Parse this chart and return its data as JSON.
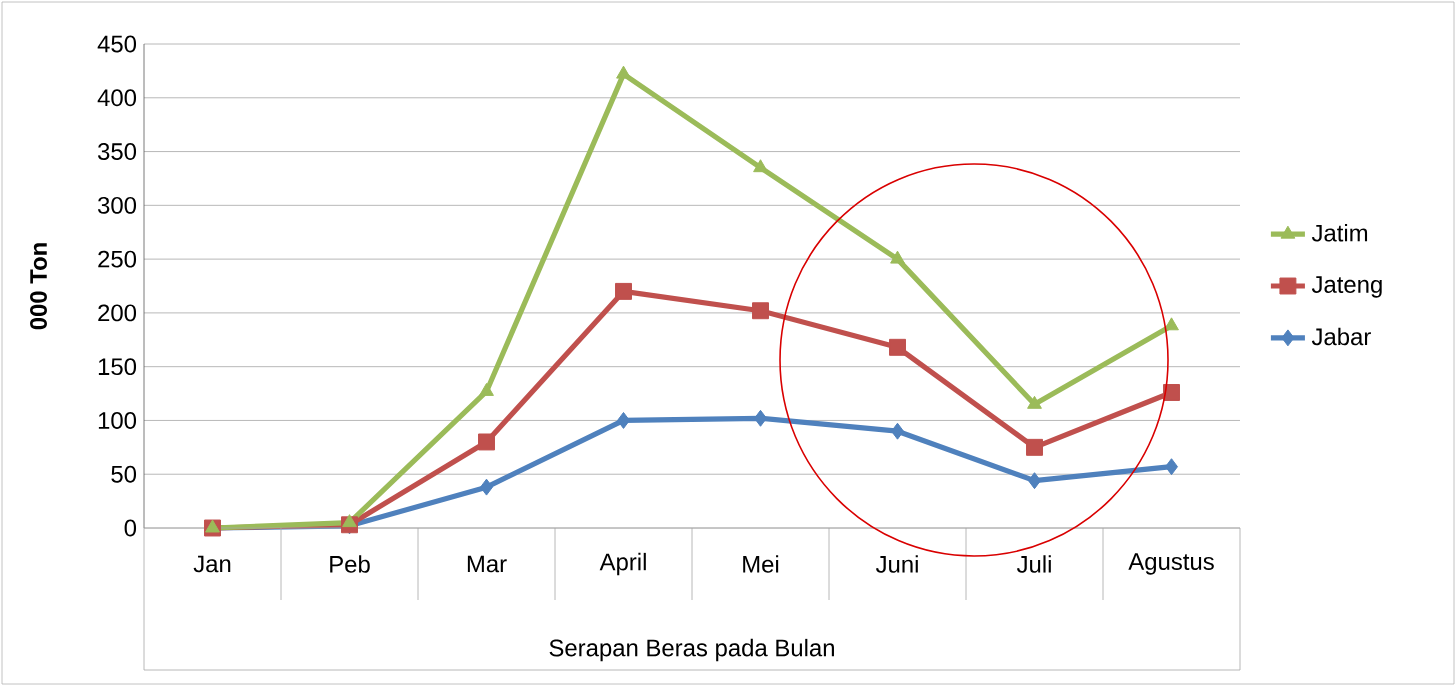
{
  "chart_data": {
    "type": "line",
    "xlabel": "Serapan Beras pada Bulan",
    "ylabel": "000 Ton",
    "categories": [
      "Jan",
      "Peb",
      "Mar",
      "April",
      "Mei",
      "Juni",
      "Juli",
      "Agustus"
    ],
    "series": [
      {
        "name": "Jatim",
        "color": "#9bbb59",
        "marker": "triangle",
        "values": [
          0,
          5,
          127,
          422,
          335,
          250,
          115,
          188
        ]
      },
      {
        "name": "Jateng",
        "color": "#c0504d",
        "marker": "square",
        "values": [
          0,
          3,
          80,
          220,
          202,
          168,
          75,
          126
        ]
      },
      {
        "name": "Jabar",
        "color": "#4f81bd",
        "marker": "diamond",
        "values": [
          0,
          2,
          38,
          100,
          102,
          90,
          44,
          57
        ]
      }
    ],
    "ylim": [
      0,
      450
    ],
    "yticks": [
      0,
      50,
      100,
      150,
      200,
      250,
      300,
      350,
      400,
      450
    ],
    "grid": "y",
    "legend": "right",
    "line_style": "solid"
  }
}
